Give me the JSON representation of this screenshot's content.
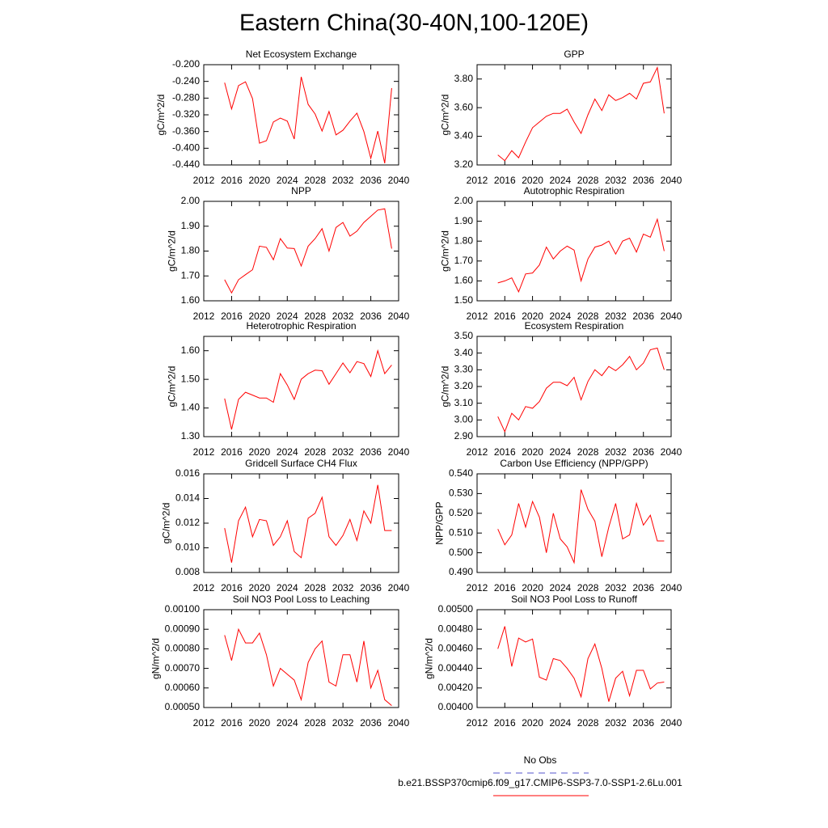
{
  "title": "Eastern China(30-40N,100-120E)",
  "legend": [
    {
      "name": "No Obs",
      "color": "#5555cc",
      "dash": true
    },
    {
      "name": "b.e21.BSSP370cmip6.f09_g17.CMIP6-SSP3-7.0-SSP1-2.6Lu.001",
      "color": "#ff0000",
      "dash": false
    }
  ],
  "chart_data": [
    {
      "type": "line",
      "title": "Net Ecosystem Exchange",
      "ylabel": "gC/m^2/d",
      "color": "#ff0000",
      "x": [
        2015,
        2016,
        2017,
        2018,
        2019,
        2020,
        2021,
        2022,
        2023,
        2024,
        2025,
        2026,
        2027,
        2028,
        2029,
        2030,
        2031,
        2032,
        2033,
        2034,
        2035,
        2036,
        2037,
        2038,
        2039
      ],
      "values": [
        -0.243,
        -0.306,
        -0.25,
        -0.241,
        -0.281,
        -0.388,
        -0.382,
        -0.337,
        -0.328,
        -0.335,
        -0.378,
        -0.229,
        -0.295,
        -0.318,
        -0.359,
        -0.312,
        -0.368,
        -0.357,
        -0.335,
        -0.316,
        -0.36,
        -0.424,
        -0.359,
        -0.436,
        -0.256
      ],
      "xlim": [
        2012,
        2040
      ],
      "xticks": [
        2012,
        2016,
        2020,
        2024,
        2028,
        2032,
        2036,
        2040
      ],
      "ylim": [
        -0.44,
        -0.2
      ],
      "yticks": [
        {
          "value": -0.44,
          "label": "-0.440"
        },
        {
          "value": -0.4,
          "label": "-0.400"
        },
        {
          "value": -0.36,
          "label": "-0.360"
        },
        {
          "value": -0.32,
          "label": "-0.320"
        },
        {
          "value": -0.28,
          "label": "-0.280"
        },
        {
          "value": -0.24,
          "label": "-0.240"
        },
        {
          "value": -0.2,
          "label": "-0.200"
        }
      ]
    },
    {
      "type": "line",
      "title": "GPP",
      "ylabel": "gC/m^2/d",
      "color": "#ff0000",
      "x": [
        2015,
        2016,
        2017,
        2018,
        2019,
        2020,
        2021,
        2022,
        2023,
        2024,
        2025,
        2026,
        2027,
        2028,
        2029,
        2030,
        2031,
        2032,
        2033,
        2034,
        2035,
        2036,
        2037,
        2038,
        2039
      ],
      "values": [
        3.27,
        3.23,
        3.3,
        3.25,
        3.36,
        3.46,
        3.5,
        3.54,
        3.56,
        3.56,
        3.59,
        3.5,
        3.42,
        3.55,
        3.66,
        3.58,
        3.69,
        3.65,
        3.67,
        3.7,
        3.66,
        3.77,
        3.78,
        3.88,
        3.56
      ],
      "xlim": [
        2012,
        2040
      ],
      "xticks": [
        2012,
        2016,
        2020,
        2024,
        2028,
        2032,
        2036,
        2040
      ],
      "ylim": [
        3.2,
        3.9
      ],
      "yticks": [
        {
          "value": 3.2,
          "label": "3.20"
        },
        {
          "value": 3.4,
          "label": "3.40"
        },
        {
          "value": 3.6,
          "label": "3.60"
        },
        {
          "value": 3.8,
          "label": "3.80"
        }
      ]
    },
    {
      "type": "line",
      "title": "NPP",
      "ylabel": "gC/m^2/d",
      "color": "#ff0000",
      "x": [
        2015,
        2016,
        2017,
        2018,
        2019,
        2020,
        2021,
        2022,
        2023,
        2024,
        2025,
        2026,
        2027,
        2028,
        2029,
        2030,
        2031,
        2032,
        2033,
        2034,
        2035,
        2036,
        2037,
        2038,
        2039
      ],
      "values": [
        1.685,
        1.632,
        1.685,
        1.705,
        1.725,
        1.82,
        1.815,
        1.765,
        1.85,
        1.812,
        1.81,
        1.74,
        1.82,
        1.85,
        1.89,
        1.8,
        1.895,
        1.915,
        1.86,
        1.88,
        1.915,
        1.94,
        1.965,
        1.97,
        1.81
      ],
      "xlim": [
        2012,
        2040
      ],
      "xticks": [
        2012,
        2016,
        2020,
        2024,
        2028,
        2032,
        2036,
        2040
      ],
      "ylim": [
        1.6,
        2.0
      ],
      "yticks": [
        {
          "value": 1.6,
          "label": "1.60"
        },
        {
          "value": 1.7,
          "label": "1.70"
        },
        {
          "value": 1.8,
          "label": "1.80"
        },
        {
          "value": 1.9,
          "label": "1.90"
        },
        {
          "value": 2.0,
          "label": "2.00"
        }
      ]
    },
    {
      "type": "line",
      "title": "Autotrophic Respiration",
      "ylabel": "gC/m^2/d",
      "color": "#ff0000",
      "x": [
        2015,
        2016,
        2017,
        2018,
        2019,
        2020,
        2021,
        2022,
        2023,
        2024,
        2025,
        2026,
        2027,
        2028,
        2029,
        2030,
        2031,
        2032,
        2033,
        2034,
        2035,
        2036,
        2037,
        2038,
        2039
      ],
      "values": [
        1.59,
        1.6,
        1.615,
        1.545,
        1.635,
        1.64,
        1.68,
        1.77,
        1.71,
        1.75,
        1.775,
        1.755,
        1.6,
        1.71,
        1.77,
        1.78,
        1.8,
        1.735,
        1.8,
        1.815,
        1.745,
        1.835,
        1.82,
        1.91,
        1.75
      ],
      "xlim": [
        2012,
        2040
      ],
      "xticks": [
        2012,
        2016,
        2020,
        2024,
        2028,
        2032,
        2036,
        2040
      ],
      "ylim": [
        1.5,
        2.0
      ],
      "yticks": [
        {
          "value": 1.5,
          "label": "1.50"
        },
        {
          "value": 1.6,
          "label": "1.60"
        },
        {
          "value": 1.7,
          "label": "1.70"
        },
        {
          "value": 1.8,
          "label": "1.80"
        },
        {
          "value": 1.9,
          "label": "1.90"
        },
        {
          "value": 2.0,
          "label": "2.00"
        }
      ]
    },
    {
      "type": "line",
      "title": "Heterotrophic Respiration",
      "ylabel": "gC/m^2/d",
      "color": "#ff0000",
      "x": [
        2015,
        2016,
        2017,
        2018,
        2019,
        2020,
        2021,
        2022,
        2023,
        2024,
        2025,
        2026,
        2027,
        2028,
        2029,
        2030,
        2031,
        2032,
        2033,
        2034,
        2035,
        2036,
        2037,
        2038,
        2039
      ],
      "values": [
        1.433,
        1.325,
        1.43,
        1.455,
        1.445,
        1.435,
        1.435,
        1.42,
        1.52,
        1.48,
        1.43,
        1.5,
        1.52,
        1.532,
        1.53,
        1.483,
        1.52,
        1.557,
        1.523,
        1.562,
        1.555,
        1.51,
        1.6,
        1.52,
        1.55
      ],
      "xlim": [
        2012,
        2040
      ],
      "xticks": [
        2012,
        2016,
        2020,
        2024,
        2028,
        2032,
        2036,
        2040
      ],
      "ylim": [
        1.3,
        1.65
      ],
      "yticks": [
        {
          "value": 1.3,
          "label": "1.30"
        },
        {
          "value": 1.4,
          "label": "1.40"
        },
        {
          "value": 1.5,
          "label": "1.50"
        },
        {
          "value": 1.6,
          "label": "1.60"
        }
      ]
    },
    {
      "type": "line",
      "title": "Ecosystem Respiration",
      "ylabel": "gC/m^2/d",
      "color": "#ff0000",
      "x": [
        2015,
        2016,
        2017,
        2018,
        2019,
        2020,
        2021,
        2022,
        2023,
        2024,
        2025,
        2026,
        2027,
        2028,
        2029,
        2030,
        2031,
        2032,
        2033,
        2034,
        2035,
        2036,
        2037,
        2038,
        2039
      ],
      "values": [
        3.02,
        2.93,
        3.04,
        3.0,
        3.08,
        3.07,
        3.11,
        3.19,
        3.225,
        3.225,
        3.205,
        3.255,
        3.12,
        3.23,
        3.3,
        3.265,
        3.32,
        3.295,
        3.33,
        3.38,
        3.3,
        3.34,
        3.42,
        3.43,
        3.3
      ],
      "xlim": [
        2012,
        2040
      ],
      "xticks": [
        2012,
        2016,
        2020,
        2024,
        2028,
        2032,
        2036,
        2040
      ],
      "ylim": [
        2.9,
        3.5
      ],
      "yticks": [
        {
          "value": 2.9,
          "label": "2.90"
        },
        {
          "value": 3.0,
          "label": "3.00"
        },
        {
          "value": 3.1,
          "label": "3.10"
        },
        {
          "value": 3.2,
          "label": "3.20"
        },
        {
          "value": 3.3,
          "label": "3.30"
        },
        {
          "value": 3.4,
          "label": "3.40"
        },
        {
          "value": 3.5,
          "label": "3.50"
        }
      ]
    },
    {
      "type": "line",
      "title": "Gridcell Surface CH4 Flux",
      "ylabel": "gC/m^2/d",
      "color": "#ff0000",
      "x": [
        2015,
        2016,
        2017,
        2018,
        2019,
        2020,
        2021,
        2022,
        2023,
        2024,
        2025,
        2026,
        2027,
        2028,
        2029,
        2030,
        2031,
        2032,
        2033,
        2034,
        2035,
        2036,
        2037,
        2038,
        2039
      ],
      "values": [
        0.0116,
        0.0088,
        0.0122,
        0.0133,
        0.0109,
        0.0123,
        0.0122,
        0.0102,
        0.0109,
        0.0122,
        0.0097,
        0.0092,
        0.0124,
        0.0128,
        0.0141,
        0.0109,
        0.0102,
        0.011,
        0.0123,
        0.0106,
        0.013,
        0.012,
        0.0151,
        0.0114,
        0.0114
      ],
      "xlim": [
        2012,
        2040
      ],
      "xticks": [
        2012,
        2016,
        2020,
        2024,
        2028,
        2032,
        2036,
        2040
      ],
      "ylim": [
        0.008,
        0.016
      ],
      "yticks": [
        0.008,
        {
          "value": 0.01,
          "label": "0.010"
        },
        0.012,
        0.014,
        0.016
      ]
    },
    {
      "type": "line",
      "title": "Carbon Use Efficiency (NPP/GPP)",
      "ylabel": "NPP/GPP",
      "color": "#ff0000",
      "x": [
        2015,
        2016,
        2017,
        2018,
        2019,
        2020,
        2021,
        2022,
        2023,
        2024,
        2025,
        2026,
        2027,
        2028,
        2029,
        2030,
        2031,
        2032,
        2033,
        2034,
        2035,
        2036,
        2037,
        2038,
        2039
      ],
      "values": [
        0.512,
        0.504,
        0.509,
        0.525,
        0.513,
        0.526,
        0.518,
        0.5,
        0.52,
        0.507,
        0.503,
        0.495,
        0.532,
        0.522,
        0.516,
        0.498,
        0.513,
        0.525,
        0.507,
        0.509,
        0.525,
        0.514,
        0.519,
        0.506,
        0.506
      ],
      "xlim": [
        2012,
        2040
      ],
      "xticks": [
        2012,
        2016,
        2020,
        2024,
        2028,
        2032,
        2036,
        2040
      ],
      "ylim": [
        0.49,
        0.54
      ],
      "yticks": [
        {
          "value": 0.49,
          "label": "0.490"
        },
        {
          "value": 0.5,
          "label": "0.500"
        },
        {
          "value": 0.51,
          "label": "0.510"
        },
        {
          "value": 0.52,
          "label": "0.520"
        },
        {
          "value": 0.53,
          "label": "0.530"
        },
        {
          "value": 0.54,
          "label": "0.540"
        }
      ]
    },
    {
      "type": "line",
      "title": "Soil NO3 Pool Loss to Leaching",
      "ylabel": "gN/m^2/d",
      "color": "#ff0000",
      "x": [
        2015,
        2016,
        2017,
        2018,
        2019,
        2020,
        2021,
        2022,
        2023,
        2024,
        2025,
        2026,
        2027,
        2028,
        2029,
        2030,
        2031,
        2032,
        2033,
        2034,
        2035,
        2036,
        2037,
        2038,
        2039
      ],
      "values": [
        0.00087,
        0.00074,
        0.0009,
        0.00083,
        0.00083,
        0.00088,
        0.00077,
        0.00061,
        0.0007,
        0.00067,
        0.00064,
        0.00054,
        0.00073,
        0.0008,
        0.00084,
        0.00063,
        0.00061,
        0.00077,
        0.00077,
        0.00063,
        0.00084,
        0.0006,
        0.00069,
        0.00054,
        0.00051
      ],
      "xlim": [
        2012,
        2040
      ],
      "xticks": [
        2012,
        2016,
        2020,
        2024,
        2028,
        2032,
        2036,
        2040
      ],
      "ylim": [
        0.0005,
        0.001
      ],
      "yticks": [
        {
          "value": 0.0005,
          "label": "0.00050"
        },
        {
          "value": 0.0006,
          "label": "0.00060"
        },
        {
          "value": 0.0007,
          "label": "0.00070"
        },
        {
          "value": 0.0008,
          "label": "0.00080"
        },
        {
          "value": 0.0009,
          "label": "0.00090"
        },
        {
          "value": 0.001,
          "label": "0.00100"
        }
      ]
    },
    {
      "type": "line",
      "title": "Soil NO3 Pool Loss to Runoff",
      "ylabel": "gN/m^2/d",
      "color": "#ff0000",
      "x": [
        2015,
        2016,
        2017,
        2018,
        2019,
        2020,
        2021,
        2022,
        2023,
        2024,
        2025,
        2026,
        2027,
        2028,
        2029,
        2030,
        2031,
        2032,
        2033,
        2034,
        2035,
        2036,
        2037,
        2038,
        2039
      ],
      "values": [
        0.0046,
        0.00483,
        0.00442,
        0.00471,
        0.00467,
        0.0047,
        0.00431,
        0.00428,
        0.0045,
        0.00448,
        0.0044,
        0.0043,
        0.00411,
        0.0045,
        0.00465,
        0.0044,
        0.00406,
        0.0043,
        0.00437,
        0.00412,
        0.00438,
        0.00438,
        0.00419,
        0.00425,
        0.00426
      ],
      "xlim": [
        2012,
        2040
      ],
      "xticks": [
        2012,
        2016,
        2020,
        2024,
        2028,
        2032,
        2036,
        2040
      ],
      "ylim": [
        0.004,
        0.005
      ],
      "yticks": [
        {
          "value": 0.004,
          "label": "0.00400"
        },
        {
          "value": 0.0042,
          "label": "0.00420"
        },
        {
          "value": 0.0044,
          "label": "0.00440"
        },
        {
          "value": 0.0046,
          "label": "0.00460"
        },
        {
          "value": 0.0048,
          "label": "0.00480"
        },
        {
          "value": 0.005,
          "label": "0.00500"
        }
      ]
    }
  ]
}
